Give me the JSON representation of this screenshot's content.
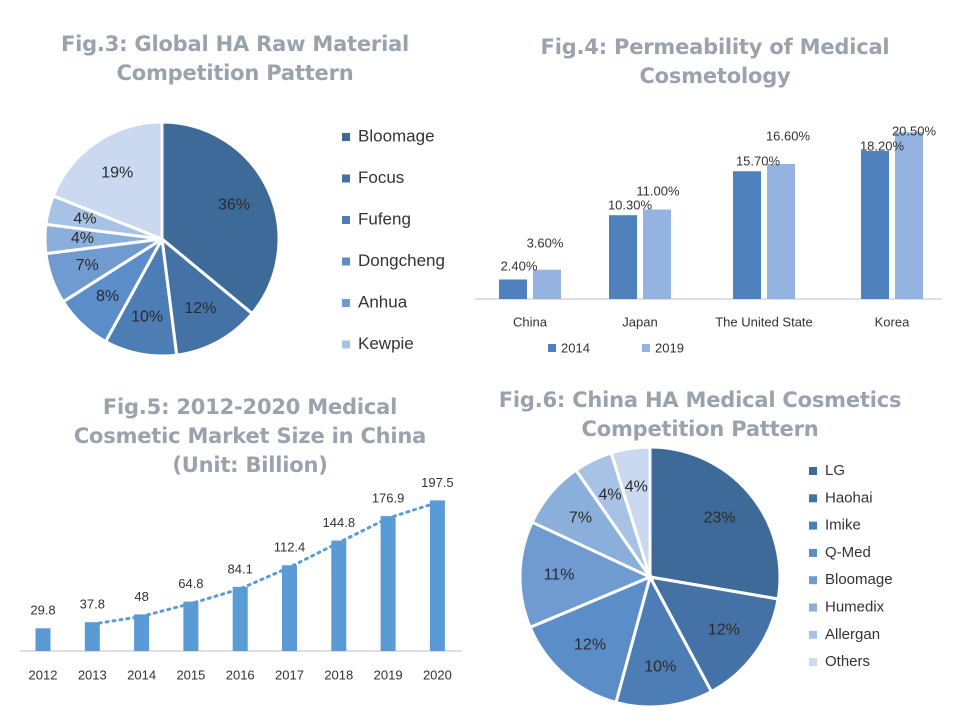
{
  "figures": {
    "fig3": {
      "title_line1": "Fig.3: Global HA Raw Material",
      "title_line2": "Competition Pattern"
    },
    "fig4": {
      "title_line1": "Fig.4: Permeability of Medical",
      "title_line2": "Cosmetology"
    },
    "fig5": {
      "title_line1": "Fig.5: 2012-2020 Medical",
      "title_line2": "Cosmetic Market Size in China",
      "title_line3": "(Unit: Billion)"
    },
    "fig6": {
      "title_line1": "Fig.6: China HA Medical Cosmetics",
      "title_line2": "Competition Pattern"
    }
  },
  "chart_data": [
    {
      "id": "fig3",
      "type": "pie",
      "title": "Fig.3: Global HA Raw Material Competition Pattern",
      "legend_position": "right",
      "legend": [
        "Bloomage",
        "Focus",
        "Fufeng",
        "Dongcheng",
        "Anhua",
        "Kewpie"
      ],
      "slices": [
        {
          "label": "36%",
          "value": 36,
          "color": "#3e6a9a"
        },
        {
          "label": "12%",
          "value": 12,
          "color": "#4472a6"
        },
        {
          "label": "10%",
          "value": 10,
          "color": "#4d7db5"
        },
        {
          "label": "8%",
          "value": 8,
          "color": "#5b8dc8"
        },
        {
          "label": "7%",
          "value": 7,
          "color": "#6f9bd0"
        },
        {
          "label": "4%",
          "value": 4,
          "color": "#8aafdb"
        },
        {
          "label": "4%",
          "value": 4,
          "color": "#a7c2e4"
        },
        {
          "label": "19%",
          "value": 19,
          "color": "#cad9ef"
        }
      ],
      "legend_colors": [
        "#3e6a9a",
        "#4472a6",
        "#4d7db5",
        "#5b8dc8",
        "#6f9bd0",
        "#a7c2e4"
      ]
    },
    {
      "id": "fig4",
      "type": "bar",
      "title": "Fig.4: Permeability of Medical Cosmetology",
      "categories": [
        "China",
        "Japan",
        "The United State",
        "Korea"
      ],
      "series": [
        {
          "name": "2014",
          "values": [
            2.4,
            10.3,
            15.7,
            18.2
          ],
          "labels": [
            "2.40%",
            "10.30%",
            "15.70%",
            "18.20%"
          ],
          "color": "#4f81bd"
        },
        {
          "name": "2019",
          "values": [
            3.6,
            11.0,
            16.6,
            20.5
          ],
          "labels": [
            "3.60%",
            "11.00%",
            "16.60%",
            "20.50%"
          ],
          "color": "#95b3e0"
        }
      ],
      "ylim": [
        0,
        22
      ],
      "legend_position": "bottom"
    },
    {
      "id": "fig5",
      "type": "bar",
      "title": "Fig.5: 2012-2020 Medical Cosmetic Market Size in China (Unit: Billion)",
      "categories": [
        "2012",
        "2013",
        "2014",
        "2015",
        "2016",
        "2017",
        "2018",
        "2019",
        "2020"
      ],
      "values": [
        29.8,
        37.8,
        48,
        64.8,
        84.1,
        112.4,
        144.8,
        176.9,
        197.5
      ],
      "labels": [
        "29.8",
        "37.8",
        "48",
        "64.8",
        "84.1",
        "112.4",
        "144.8",
        "176.9",
        "197.5"
      ],
      "color": "#5b9bd5",
      "trendline": "dotted",
      "ylim": [
        0,
        210
      ]
    },
    {
      "id": "fig6",
      "type": "pie",
      "title": "Fig.6: China HA Medical Cosmetics Competition Pattern",
      "legend_position": "right",
      "legend": [
        "LG",
        "Haohai",
        "Imike",
        "Q-Med",
        "Bloomage",
        "Humedix",
        "Allergan",
        "Others"
      ],
      "slices": [
        {
          "label": "23%",
          "value": 23,
          "color": "#3e6a9a"
        },
        {
          "label": "12%",
          "value": 12,
          "color": "#4472a6"
        },
        {
          "label": "10%",
          "value": 10,
          "color": "#4d7db5"
        },
        {
          "label": "12%",
          "value": 12,
          "color": "#5b8dc8"
        },
        {
          "label": "11%",
          "value": 11,
          "color": "#6f9bd0"
        },
        {
          "label": "7%",
          "value": 7,
          "color": "#8aafdb"
        },
        {
          "label": "4%",
          "value": 4,
          "color": "#a7c2e4"
        },
        {
          "label": "4%",
          "value": 4,
          "color": "#cad9ef"
        }
      ],
      "legend_colors": [
        "#3e6a9a",
        "#4472a6",
        "#4d7db5",
        "#5b8dc8",
        "#6f9bd0",
        "#8aafdb",
        "#a7c2e4",
        "#cad9ef"
      ]
    }
  ]
}
